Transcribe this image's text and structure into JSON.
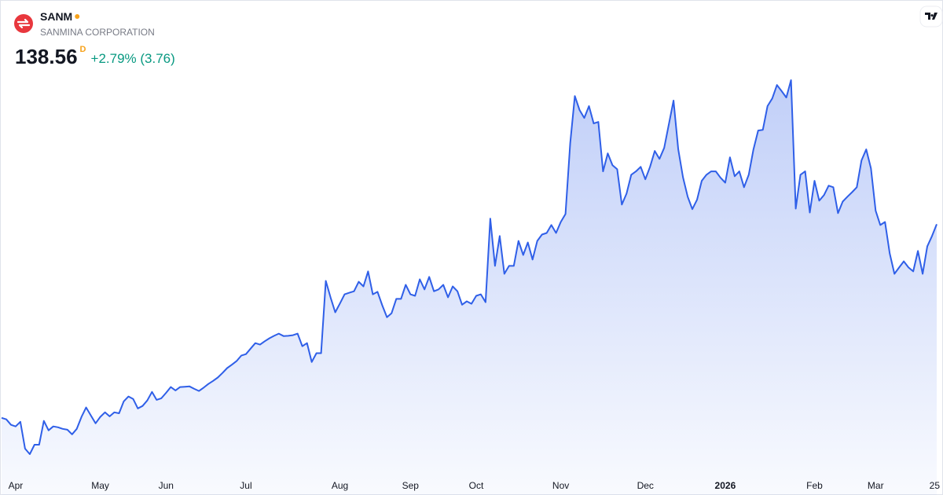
{
  "header": {
    "symbol": "SANM",
    "company": "SANMINA CORPORATION",
    "price": "138.56",
    "interval": "D",
    "change": "+2.79% (3.76)"
  },
  "chart_data": {
    "type": "area",
    "color": "#2f5fe8",
    "categories": [
      null,
      null,
      null,
      "Apr",
      null,
      null,
      null,
      null,
      null,
      null,
      null,
      null,
      null,
      null,
      null,
      null,
      null,
      null,
      null,
      null,
      null,
      "May",
      null,
      null,
      null,
      null,
      null,
      null,
      null,
      null,
      null,
      null,
      null,
      null,
      null,
      "Jun",
      null,
      null,
      null,
      null,
      null,
      null,
      null,
      null,
      null,
      null,
      null,
      null,
      null,
      null,
      null,
      null,
      "Jul",
      null,
      null,
      null,
      null,
      null,
      null,
      null,
      null,
      null,
      null,
      null,
      null,
      null,
      null,
      null,
      null,
      null,
      null,
      null,
      "Aug",
      null,
      null,
      null,
      null,
      null,
      null,
      null,
      null,
      null,
      null,
      null,
      null,
      null,
      null,
      "Sep",
      null,
      null,
      null,
      null,
      null,
      null,
      null,
      null,
      null,
      null,
      null,
      null,
      null,
      "Oct",
      null,
      null,
      null,
      null,
      null,
      null,
      null,
      null,
      null,
      null,
      null,
      null,
      null,
      null,
      null,
      null,
      null,
      "Nov",
      null,
      null,
      null,
      null,
      null,
      null,
      null,
      null,
      null,
      null,
      null,
      null,
      null,
      null,
      null,
      null,
      null,
      "Dec",
      null,
      null,
      null,
      null,
      null,
      null,
      null,
      null,
      null,
      null,
      null,
      null,
      null,
      null,
      null,
      null,
      "2026",
      null,
      null,
      null,
      null,
      null,
      null,
      null,
      null,
      null,
      null,
      null,
      null,
      null,
      null,
      null,
      null,
      null,
      null,
      "Feb",
      null,
      null,
      null,
      null,
      null,
      null,
      null,
      null,
      null,
      null,
      null,
      null,
      "Mar",
      null,
      null,
      null,
      null,
      null,
      null,
      null,
      null,
      null,
      null,
      null,
      null,
      "25"
    ],
    "values": [
      75.1,
      74.6,
      72.8,
      72.3,
      73.8,
      65.0,
      63.2,
      66.3,
      66.3,
      74.1,
      71.0,
      72.3,
      72.0,
      71.5,
      71.2,
      69.7,
      71.5,
      75.4,
      78.5,
      75.9,
      73.3,
      75.4,
      76.9,
      75.6,
      76.9,
      76.6,
      80.5,
      82.1,
      81.3,
      78.2,
      79.0,
      80.8,
      83.6,
      81.0,
      81.5,
      83.3,
      85.2,
      84.1,
      85.2,
      85.3,
      85.4,
      84.6,
      83.9,
      85.0,
      86.2,
      87.2,
      88.3,
      89.8,
      91.4,
      92.5,
      93.7,
      95.5,
      96.0,
      97.8,
      99.6,
      99.1,
      100.2,
      101.2,
      102.0,
      102.7,
      101.9,
      102.0,
      102.2,
      102.7,
      98.6,
      99.6,
      93.4,
      96.3,
      96.3,
      120.0,
      114.6,
      109.7,
      112.6,
      115.6,
      116.1,
      116.6,
      119.7,
      118.2,
      123.1,
      115.6,
      116.4,
      112.0,
      108.1,
      109.4,
      114.1,
      114.1,
      118.7,
      115.6,
      115.1,
      120.5,
      117.2,
      121.3,
      116.6,
      117.2,
      118.7,
      114.6,
      118.2,
      116.6,
      112.2,
      113.3,
      112.5,
      115.1,
      115.6,
      113.0,
      140.4,
      124.9,
      134.7,
      122.3,
      124.9,
      124.9,
      133.1,
      128.5,
      132.6,
      127.0,
      133.1,
      135.2,
      135.7,
      138.3,
      135.7,
      139.3,
      141.9,
      165.1,
      180.6,
      176.0,
      173.4,
      177.3,
      171.6,
      172.1,
      155.9,
      161.8,
      157.9,
      156.6,
      145.0,
      148.6,
      154.8,
      155.9,
      157.4,
      153.3,
      157.4,
      162.6,
      160.0,
      163.6,
      171.3,
      179.1,
      163.1,
      154.0,
      147.6,
      143.5,
      146.6,
      152.8,
      154.8,
      155.9,
      155.9,
      153.8,
      152.2,
      160.5,
      154.3,
      155.9,
      150.7,
      154.8,
      163.1,
      169.3,
      169.5,
      177.3,
      179.8,
      184.2,
      182.2,
      180.1,
      185.8,
      143.7,
      154.8,
      155.9,
      142.4,
      152.8,
      146.3,
      148.1,
      151.2,
      150.7,
      142.2,
      146.0,
      147.6,
      149.1,
      150.7,
      159.5,
      163.1,
      156.9,
      143.0,
      138.3,
      139.3,
      129.0,
      122.3,
      124.4,
      126.4,
      124.4,
      123.1,
      129.8,
      122.3,
      131.3,
      134.7,
      138.56
    ]
  }
}
